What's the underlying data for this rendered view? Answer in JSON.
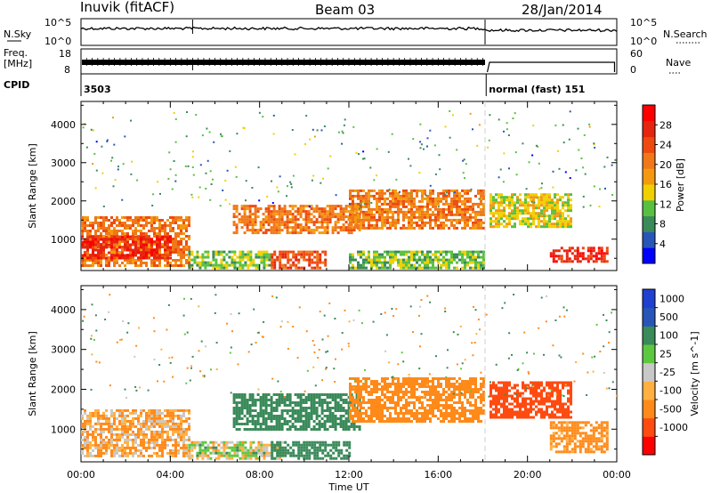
{
  "header": {
    "station": "Inuvik (fitACF)",
    "beam": "Beam 03",
    "date": "28/Jan/2014"
  },
  "noise_panel": {
    "left_label": "N.Sky",
    "right_label": "N.Search",
    "left_ticks": [
      "10^5",
      "10^0"
    ],
    "right_ticks": [
      "10^5",
      "10^0"
    ]
  },
  "freq_panel": {
    "left_label_1": "Freq.",
    "left_label_2": "[MHz]",
    "left_ticks": [
      "18",
      "8"
    ],
    "right_label": "Nave",
    "right_ticks": [
      "60",
      "0"
    ]
  },
  "cpid_panel": {
    "label": "CPID",
    "segments": [
      {
        "start_hour": 0,
        "end_hour": 18.1,
        "text": "3503"
      },
      {
        "start_hour": 18.15,
        "end_hour": 24,
        "text": "normal (fast) 151"
      }
    ]
  },
  "colors": {
    "power_scale": [
      "#0000ff",
      "#2856b8",
      "#3a8a5a",
      "#58c040",
      "#f0d000",
      "#f59a10",
      "#f07818",
      "#ee4a10",
      "#e62510",
      "#ff0000"
    ],
    "velocity_scale": [
      "#ff0000",
      "#ff4a10",
      "#ff8a1a",
      "#ffb040",
      "#c8c8c8",
      "#5cc840",
      "#3a8a5a",
      "#2856b8",
      "#2040d0"
    ]
  },
  "chart_data": [
    {
      "type": "heatmap",
      "title": "Power",
      "xlabel": "",
      "ylabel": "Slant Range [km]",
      "xlim": [
        0,
        24
      ],
      "ylim": [
        180,
        4600
      ],
      "xticks": [
        "00:00",
        "04:00",
        "08:00",
        "12:00",
        "16:00",
        "20:00",
        "00:00"
      ],
      "yticks": [
        1000,
        2000,
        3000,
        4000
      ],
      "colorbar": {
        "label": "Power [dB]",
        "min": 0,
        "max": 32,
        "tick_labels": [
          "4",
          "8",
          "12",
          "16",
          "20",
          "24",
          "28"
        ]
      },
      "regions": [
        {
          "t0": 0.0,
          "t1": 4.8,
          "r_low": 300,
          "r_high": 1600,
          "value": 22
        },
        {
          "t0": 0.0,
          "t1": 4.0,
          "r_low": 500,
          "r_high": 1100,
          "value": 28
        },
        {
          "t0": 4.8,
          "t1": 8.5,
          "r_low": 250,
          "r_high": 700,
          "value": 12
        },
        {
          "t0": 6.8,
          "t1": 12.5,
          "r_low": 1200,
          "r_high": 1900,
          "value": 20
        },
        {
          "t0": 8.5,
          "t1": 11.0,
          "r_low": 250,
          "r_high": 700,
          "value": 26
        },
        {
          "t0": 12.0,
          "t1": 18.0,
          "r_low": 1300,
          "r_high": 2300,
          "value": 22
        },
        {
          "t0": 18.3,
          "t1": 22.0,
          "r_low": 1300,
          "r_high": 2200,
          "value": 14
        },
        {
          "t0": 21.0,
          "t1": 23.6,
          "r_low": 400,
          "r_high": 800,
          "value": 27
        },
        {
          "t0": 12.0,
          "t1": 18.0,
          "r_low": 250,
          "r_high": 700,
          "value": 10
        }
      ]
    },
    {
      "type": "heatmap",
      "title": "Velocity",
      "xlabel": "Time UT",
      "ylabel": "Slant Range [km]",
      "xlim": [
        0,
        24
      ],
      "ylim": [
        180,
        4600
      ],
      "xticks": [
        "00:00",
        "04:00",
        "08:00",
        "12:00",
        "16:00",
        "20:00",
        "00:00"
      ],
      "yticks": [
        1000,
        2000,
        3000,
        4000
      ],
      "colorbar": {
        "label": "Velocity [m s^-1]",
        "tick_labels": [
          "1000",
          "500",
          "100",
          "25",
          "-25",
          "-100",
          "-500",
          "-1000"
        ]
      },
      "regions": [
        {
          "t0": 0.0,
          "t1": 4.8,
          "r_low": 300,
          "r_high": 1500,
          "value": -100
        },
        {
          "t0": 4.8,
          "t1": 9.0,
          "r_low": 250,
          "r_high": 700,
          "value": 0
        },
        {
          "t0": 6.8,
          "t1": 12.5,
          "r_low": 1000,
          "r_high": 1900,
          "value": 300
        },
        {
          "t0": 8.5,
          "t1": 12.0,
          "r_low": 250,
          "r_high": 700,
          "value": 300
        },
        {
          "t0": 12.0,
          "t1": 18.0,
          "r_low": 1200,
          "r_high": 2300,
          "value": -300
        },
        {
          "t0": 18.3,
          "t1": 22.0,
          "r_low": 1300,
          "r_high": 2200,
          "value": -800
        },
        {
          "t0": 21.0,
          "t1": 23.6,
          "r_low": 400,
          "r_high": 1200,
          "value": -200
        }
      ]
    }
  ]
}
